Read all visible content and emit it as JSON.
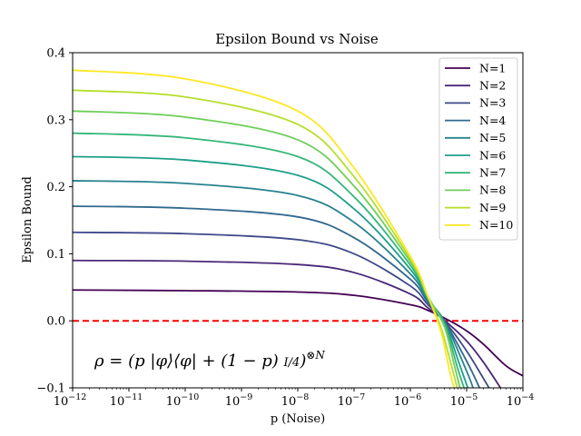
{
  "chart_data": {
    "type": "line",
    "title": "Epsilon Bound vs Noise",
    "xlabel": "p (Noise)",
    "ylabel": "Epsilon Bound",
    "x_scale": "log",
    "xlim": [
      1e-12,
      0.0001
    ],
    "ylim": [
      -0.1,
      0.4
    ],
    "x_ticks": [
      {
        "value": 1e-12,
        "base": "10",
        "exp": "−12"
      },
      {
        "value": 1e-11,
        "base": "10",
        "exp": "−11"
      },
      {
        "value": 1e-10,
        "base": "10",
        "exp": "−10"
      },
      {
        "value": 1e-09,
        "base": "10",
        "exp": "−9"
      },
      {
        "value": 1e-08,
        "base": "10",
        "exp": "−8"
      },
      {
        "value": 1e-07,
        "base": "10",
        "exp": "−7"
      },
      {
        "value": 1e-06,
        "base": "10",
        "exp": "−6"
      },
      {
        "value": 1e-05,
        "base": "10",
        "exp": "−5"
      },
      {
        "value": 0.0001,
        "base": "10",
        "exp": "−4"
      }
    ],
    "y_ticks": [
      {
        "value": -0.1,
        "label": "−0.1"
      },
      {
        "value": 0.0,
        "label": "0.0"
      },
      {
        "value": 0.1,
        "label": "0.1"
      },
      {
        "value": 0.2,
        "label": "0.2"
      },
      {
        "value": 0.3,
        "label": "0.3"
      },
      {
        "value": 0.4,
        "label": "0.4"
      }
    ],
    "grid": false,
    "legend_position": "top-right",
    "reference_line": {
      "y": 0.0,
      "color": "#ff0000",
      "style": "dashed"
    },
    "annotation": "ρ = (p |φ⟩⟨φ| + (1 − p) I/4)^⊗N",
    "series": [
      {
        "name": "N=1",
        "color": "#440154",
        "plateau": 0.046,
        "x": [
          1e-12,
          1e-10,
          1e-08,
          1e-07,
          1e-06,
          2e-06,
          5e-06,
          1e-05,
          2e-05,
          5e-05,
          0.0001
        ],
        "y": [
          0.046,
          0.045,
          0.043,
          0.038,
          0.024,
          0.016,
          0.0,
          -0.015,
          -0.035,
          -0.067,
          -0.082
        ]
      },
      {
        "name": "N=2",
        "color": "#482878",
        "plateau": 0.09,
        "x": [
          1e-12,
          1e-10,
          1e-08,
          1e-07,
          1e-06,
          2e-06,
          4e-06,
          1e-05,
          2e-05,
          4e-05
        ],
        "y": [
          0.09,
          0.089,
          0.084,
          0.072,
          0.04,
          0.02,
          0.001,
          -0.03,
          -0.062,
          -0.1
        ]
      },
      {
        "name": "N=3",
        "color": "#3e4989",
        "plateau": 0.132,
        "x": [
          1e-12,
          1e-10,
          1e-08,
          1e-07,
          1e-06,
          2e-06,
          4e-06,
          1e-05,
          2.5e-05
        ],
        "y": [
          0.132,
          0.13,
          0.121,
          0.1,
          0.052,
          0.025,
          0.0,
          -0.045,
          -0.1
        ]
      },
      {
        "name": "N=4",
        "color": "#31688e",
        "plateau": 0.171,
        "x": [
          1e-12,
          1e-10,
          1e-08,
          1e-07,
          1e-06,
          2e-06,
          4e-06,
          1e-05,
          1.7e-05
        ],
        "y": [
          0.171,
          0.168,
          0.155,
          0.124,
          0.062,
          0.029,
          0.0,
          -0.06,
          -0.1
        ]
      },
      {
        "name": "N=5",
        "color": "#26828e",
        "plateau": 0.209,
        "x": [
          1e-12,
          1e-10,
          1e-08,
          1e-07,
          1e-06,
          2e-06,
          4e-06,
          1e-05,
          1.3e-05
        ],
        "y": [
          0.209,
          0.205,
          0.187,
          0.147,
          0.07,
          0.032,
          0.0,
          -0.075,
          -0.1
        ]
      },
      {
        "name": "N=6",
        "color": "#1f9e89",
        "plateau": 0.245,
        "x": [
          1e-12,
          1e-10,
          1e-08,
          1e-07,
          1e-06,
          2e-06,
          4e-06,
          8e-06,
          1.05e-05
        ],
        "y": [
          0.245,
          0.24,
          0.217,
          0.167,
          0.077,
          0.034,
          -0.002,
          -0.072,
          -0.1
        ]
      },
      {
        "name": "N=7",
        "color": "#35b779",
        "plateau": 0.28,
        "x": [
          1e-12,
          1e-10,
          1e-08,
          1e-07,
          1e-06,
          2e-06,
          4e-06,
          7e-06,
          9e-06
        ],
        "y": [
          0.28,
          0.273,
          0.245,
          0.185,
          0.083,
          0.036,
          -0.004,
          -0.072,
          -0.1
        ]
      },
      {
        "name": "N=8",
        "color": "#6ece58",
        "plateau": 0.313,
        "x": [
          1e-12,
          1e-10,
          1e-08,
          1e-07,
          1e-06,
          2e-06,
          4e-06,
          6e-06,
          7.6e-06
        ],
        "y": [
          0.313,
          0.304,
          0.27,
          0.201,
          0.088,
          0.038,
          -0.008,
          -0.065,
          -0.1
        ]
      },
      {
        "name": "N=9",
        "color": "#b5de2b",
        "plateau": 0.344,
        "x": [
          1e-12,
          1e-10,
          1e-08,
          1e-07,
          1e-06,
          2e-06,
          3.5e-06,
          5.5e-06,
          6.8e-06
        ],
        "y": [
          0.344,
          0.334,
          0.293,
          0.215,
          0.092,
          0.038,
          -0.01,
          -0.07,
          -0.1
        ]
      },
      {
        "name": "N=10",
        "color": "#fde725",
        "plateau": 0.374,
        "x": [
          1e-12,
          1e-10,
          1e-08,
          1e-07,
          1e-06,
          2e-06,
          3.5e-06,
          5e-06,
          6e-06
        ],
        "y": [
          0.374,
          0.361,
          0.313,
          0.228,
          0.096,
          0.039,
          -0.016,
          -0.075,
          -0.1
        ]
      }
    ]
  }
}
